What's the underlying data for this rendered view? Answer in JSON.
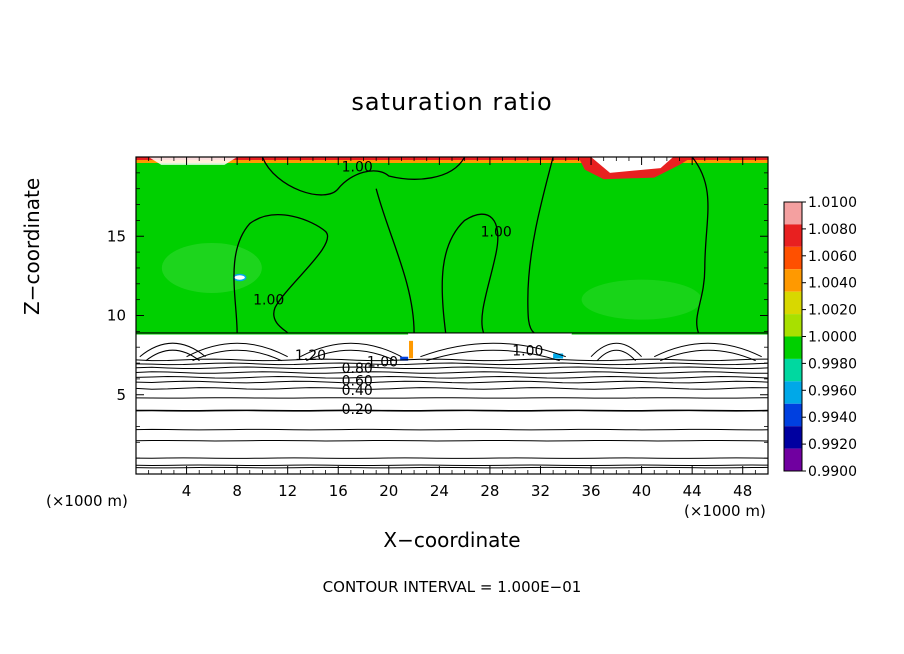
{
  "chart_data": {
    "type": "heatmap",
    "title": "saturation ratio",
    "xlabel": "X−coordinate",
    "ylabel": "Z−coordinate",
    "x_unit": "(×1000 m)",
    "z_unit": "(×1000 m)",
    "xlim": [
      0,
      50
    ],
    "ylim": [
      0,
      20
    ],
    "x_ticks": [
      4,
      8,
      12,
      16,
      20,
      24,
      28,
      32,
      36,
      40,
      44,
      48
    ],
    "y_ticks": [
      5,
      10,
      15
    ],
    "colorbar": {
      "levels": [
        "1.0100",
        "1.0080",
        "1.0060",
        "1.0040",
        "1.0020",
        "1.0000",
        "0.9980",
        "0.9960",
        "0.9940",
        "0.9920",
        "0.9900"
      ],
      "colors": [
        "#f4a0a0",
        "#e82020",
        "#ff5000",
        "#ff9900",
        "#d8d800",
        "#a8e000",
        "#00d000",
        "#00d8a0",
        "#00a8e8",
        "#0040e0",
        "#0000a0",
        "#7000a0"
      ]
    },
    "contour_labels": [
      {
        "text": "1.00",
        "x": 17.5,
        "z": 19.4
      },
      {
        "text": "1.00",
        "x": 28.5,
        "z": 15.3
      },
      {
        "text": "1.00",
        "x": 10.5,
        "z": 11.0
      },
      {
        "text": "1.20",
        "x": 13.8,
        "z": 7.5
      },
      {
        "text": "1.00",
        "x": 19.5,
        "z": 7.1
      },
      {
        "text": "0.80",
        "x": 17.5,
        "z": 6.7
      },
      {
        "text": "0.60",
        "x": 17.5,
        "z": 5.9
      },
      {
        "text": "0.40",
        "x": 17.5,
        "z": 5.3
      },
      {
        "text": "0.20",
        "x": 17.5,
        "z": 4.1
      },
      {
        "text": "1.00",
        "x": 31.0,
        "z": 7.8
      }
    ],
    "contour_lines_z": [
      0.4,
      0.55,
      1.0,
      2.1,
      2.8,
      4.0,
      4.8,
      5.4,
      5.8,
      6.1,
      6.4,
      6.7,
      6.95,
      7.2
    ],
    "colors_main": {
      "field": "#00d000",
      "light_patch": "#30d830",
      "top_band": "#ffffff",
      "top_red": "#e82020",
      "top_orange": "#ff9900"
    }
  },
  "footer": "CONTOUR INTERVAL = 1.000E−01"
}
